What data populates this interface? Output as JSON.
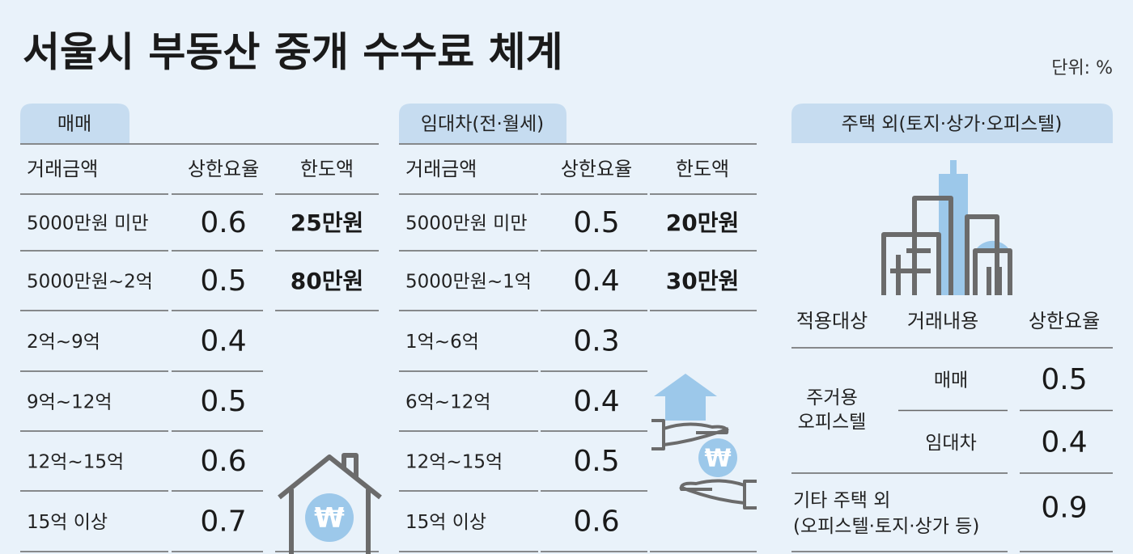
{
  "title": "서울시 부동산 중개 수수료 체계",
  "unit": "단위: %",
  "sale": {
    "tab": "매매",
    "headers": [
      "거래금액",
      "상한요율",
      "한도액"
    ],
    "rows": [
      [
        "5000만원 미만",
        0.6,
        "25만원"
      ],
      [
        "5000만원~2억",
        0.5,
        "80만원"
      ],
      [
        "2억~9억",
        0.4
      ],
      [
        "9억~12억",
        0.5
      ],
      [
        "12억~15억",
        0.6
      ],
      [
        "15억 이상",
        0.7
      ]
    ]
  },
  "lease": {
    "tab": "임대차(전·월세)",
    "headers": [
      "거래금액",
      "상한요율",
      "한도액"
    ],
    "rows": [
      [
        "5000만원 미만",
        0.5,
        "20만원"
      ],
      [
        "5000만원~1억",
        0.4,
        "30만원"
      ],
      [
        "1억~6억",
        0.3
      ],
      [
        "6억~12억",
        0.4
      ],
      [
        "12억~15억",
        0.5
      ],
      [
        "15억 이상",
        0.6
      ]
    ]
  },
  "other": {
    "tab": "주택 외(토지·상가·오피스텔)",
    "headers": [
      "적용대상",
      "거래내용",
      "상한요율"
    ],
    "groups": [
      {
        "target": [
          "주거용",
          "오피스텔"
        ],
        "items": [
          [
            "매매",
            0.5
          ],
          [
            "임대차",
            0.4
          ]
        ]
      },
      {
        "target": [
          "기타 주택 외",
          "(오피스텔·토지·상가 등)"
        ],
        "rate": 0.9
      }
    ]
  }
}
